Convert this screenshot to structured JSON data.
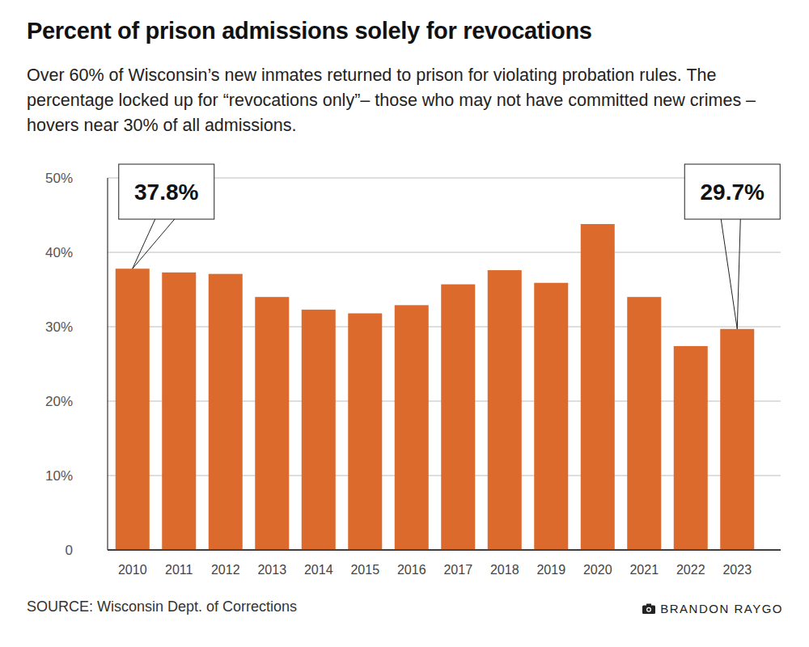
{
  "chart_data": {
    "type": "bar",
    "title": "Percent of prison admissions solely for revocations",
    "subtitle": "Over 60% of Wisconsin’s new inmates returned to prison for violating probation rules. The percentage locked up for “revocations only”– those who may not have committed new crimes – hovers near 30% of all admissions.",
    "categories": [
      "2010",
      "2011",
      "2012",
      "2013",
      "2014",
      "2015",
      "2016",
      "2017",
      "2018",
      "2019",
      "2020",
      "2021",
      "2022",
      "2023"
    ],
    "values": [
      37.8,
      37.3,
      37.1,
      34.0,
      32.3,
      31.8,
      32.9,
      35.7,
      37.6,
      35.9,
      43.8,
      34.0,
      27.4,
      29.7
    ],
    "value_labels": [
      "37.8%",
      null,
      null,
      null,
      null,
      null,
      null,
      null,
      null,
      null,
      null,
      null,
      null,
      "29.7%"
    ],
    "data_labels": true,
    "color": "#dc6a2c",
    "ylim": [
      0,
      50
    ],
    "yticks": [
      0,
      {
        "value": 10,
        "label": "10%"
      },
      {
        "value": 20,
        "label": "20%"
      },
      {
        "value": 30,
        "label": "30%"
      },
      {
        "value": 40,
        "label": "40%"
      },
      {
        "value": 50,
        "label": "50%"
      }
    ],
    "grid": true,
    "source": "SOURCE: Wisconsin Dept. of Corrections",
    "credit": "BRANDON RAYGO"
  }
}
